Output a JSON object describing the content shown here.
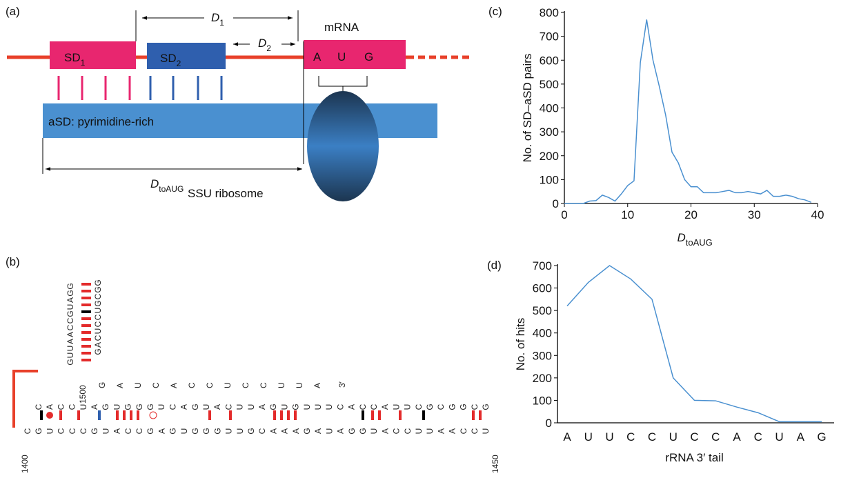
{
  "diagram": {
    "panel_a": "(a)",
    "panel_b": "(b)",
    "sd": "SD",
    "sd1_sub": "1",
    "sd2_sub": "2",
    "d": "D",
    "d1_sub": "1",
    "d2_sub": "2",
    "mrna": "mRNA",
    "codon": [
      "A",
      "U",
      "G"
    ],
    "asd": "aSD: pyrimidine-rich",
    "dtoaug_sub": "toAUG",
    "ssu": "SSU ribosome",
    "rna": {
      "stem_left": "GUUAACCGUAGG",
      "stem_right": "GACUCCUGCGG",
      "tail": "GAUCACCUCCUUA",
      "three_prime": "3′",
      "top_strand": [
        "C",
        "A",
        "C",
        "C",
        "U",
        "A",
        "G",
        "U",
        "G",
        "G",
        "G",
        "U",
        "C",
        "A",
        "G",
        "U",
        "A",
        "C",
        "U",
        "U",
        "A",
        "G",
        "U",
        "G",
        "U",
        "U",
        "U",
        "C",
        "A",
        "C",
        "C",
        "A",
        "U",
        "U",
        "C",
        "G",
        "C",
        "G",
        "G",
        "C",
        "G"
      ],
      "bottom_strand": [
        "C",
        "G",
        "U",
        "C",
        "C",
        "C",
        "G",
        "U",
        "A",
        "C",
        "C",
        "G",
        "A",
        "G",
        "U",
        "G",
        "G",
        "G",
        "U",
        "U",
        "G",
        "C",
        "A",
        "A",
        "A",
        "G",
        "A",
        "U",
        "A",
        "G",
        "G",
        "U",
        "A",
        "C",
        "C",
        "U",
        "U",
        "A",
        "A",
        "C",
        "C",
        "U"
      ],
      "n1400": "1400",
      "n1450": "1450",
      "n1500": "1500"
    }
  },
  "chart_data": [
    {
      "type": "line",
      "panel": "(c)",
      "ylabel": "No. of SD–aSD pairs",
      "xlabel": "D",
      "xlabel_sub": "toAUG",
      "x": [
        0,
        1,
        2,
        3,
        4,
        5,
        6,
        7,
        8,
        9,
        10,
        11,
        12,
        13,
        14,
        15,
        16,
        17,
        18,
        19,
        20,
        21,
        22,
        23,
        24,
        25,
        26,
        27,
        28,
        29,
        30,
        31,
        32,
        33,
        34,
        35,
        36,
        37,
        38,
        39
      ],
      "values": [
        0,
        0,
        0,
        0,
        10,
        12,
        35,
        25,
        10,
        40,
        75,
        95,
        590,
        770,
        600,
        490,
        370,
        215,
        170,
        100,
        70,
        70,
        45,
        45,
        45,
        50,
        55,
        45,
        45,
        50,
        45,
        40,
        55,
        30,
        30,
        35,
        30,
        20,
        15,
        5
      ],
      "color": "#4a90d0",
      "xlim": [
        0,
        40
      ],
      "xticks": [
        0,
        10,
        20,
        30,
        40
      ],
      "ylim": [
        0,
        800
      ],
      "yticks": [
        0,
        100,
        200,
        300,
        400,
        500,
        600,
        700,
        800
      ]
    },
    {
      "type": "line",
      "panel": "(d)",
      "ylabel": "No. of hits",
      "xlabel": "rRNA 3′ tail",
      "categories": [
        "A",
        "U",
        "U",
        "C",
        "C",
        "U",
        "C",
        "C",
        "A",
        "C",
        "U",
        "A",
        "G"
      ],
      "values": [
        520,
        625,
        700,
        640,
        550,
        200,
        100,
        98,
        70,
        45,
        5,
        5,
        5
      ],
      "color": "#4a90d0",
      "ylim": [
        0,
        700
      ],
      "yticks": [
        0,
        100,
        200,
        300,
        400,
        500,
        600,
        700
      ]
    }
  ]
}
